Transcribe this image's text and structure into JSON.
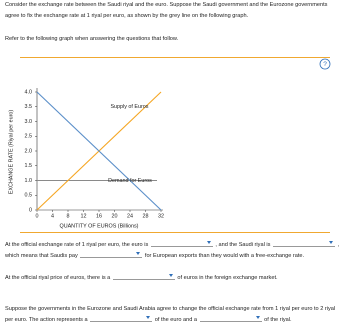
{
  "intro": "Consider the exchange rate between the Saudi riyal and the euro. Suppose the Saudi government and the Eurozone governments agree to fix the exchange rate at 1 riyal per euro, as shown by the grey line on the following graph.",
  "instruction": "Refer to the following graph when answering the questions that follow.",
  "chart_data": {
    "type": "line",
    "ylabel": "EXCHANGE RATE (Riyal per euro)",
    "xlabel": "QUANTITY OF EUROS (Billions)",
    "x": [
      0,
      32
    ],
    "series": [
      {
        "name": "Supply of Euros",
        "color": "#f5a623",
        "values": [
          0,
          4
        ]
      },
      {
        "name": "Demand for Euros",
        "color": "#5b8fc9",
        "values": [
          4,
          0
        ]
      }
    ],
    "peg": {
      "value": 1,
      "color": "#8a8a8a"
    },
    "xlim": [
      0,
      32
    ],
    "xticks": [
      0,
      4,
      8,
      12,
      16,
      20,
      24,
      28,
      32
    ],
    "ylim": [
      0,
      4
    ],
    "yticks": [
      0,
      {
        "value": 0.5,
        "label": "0.5"
      },
      {
        "value": 1,
        "label": "1.0"
      },
      {
        "value": 1.5,
        "label": "1.5"
      },
      {
        "value": 2,
        "label": "2.0"
      },
      {
        "value": 2.5,
        "label": "2.5"
      },
      {
        "value": 3,
        "label": "3.0"
      },
      {
        "value": 3.5,
        "label": "3.5"
      },
      {
        "value": 4,
        "label": "4.0"
      }
    ]
  },
  "questions": [
    [
      "At the official exchange rate of 1 riyal per euro, the euro is",
      ", and the Saudi riyal is",
      ", which means that Saudis pay",
      "for European exports than they would with a free-exchange rate."
    ],
    [
      "At the official riyal price of euros, there is a",
      "of euros in the foreign exchange market."
    ],
    [
      "Suppose the governments in the Eurozone and Saudi Arabia agree to change the official exchange rate from 1 riyal per euro to 2 riyal per euro. The action represents a",
      "of the euro and a",
      "of the riyal."
    ]
  ]
}
